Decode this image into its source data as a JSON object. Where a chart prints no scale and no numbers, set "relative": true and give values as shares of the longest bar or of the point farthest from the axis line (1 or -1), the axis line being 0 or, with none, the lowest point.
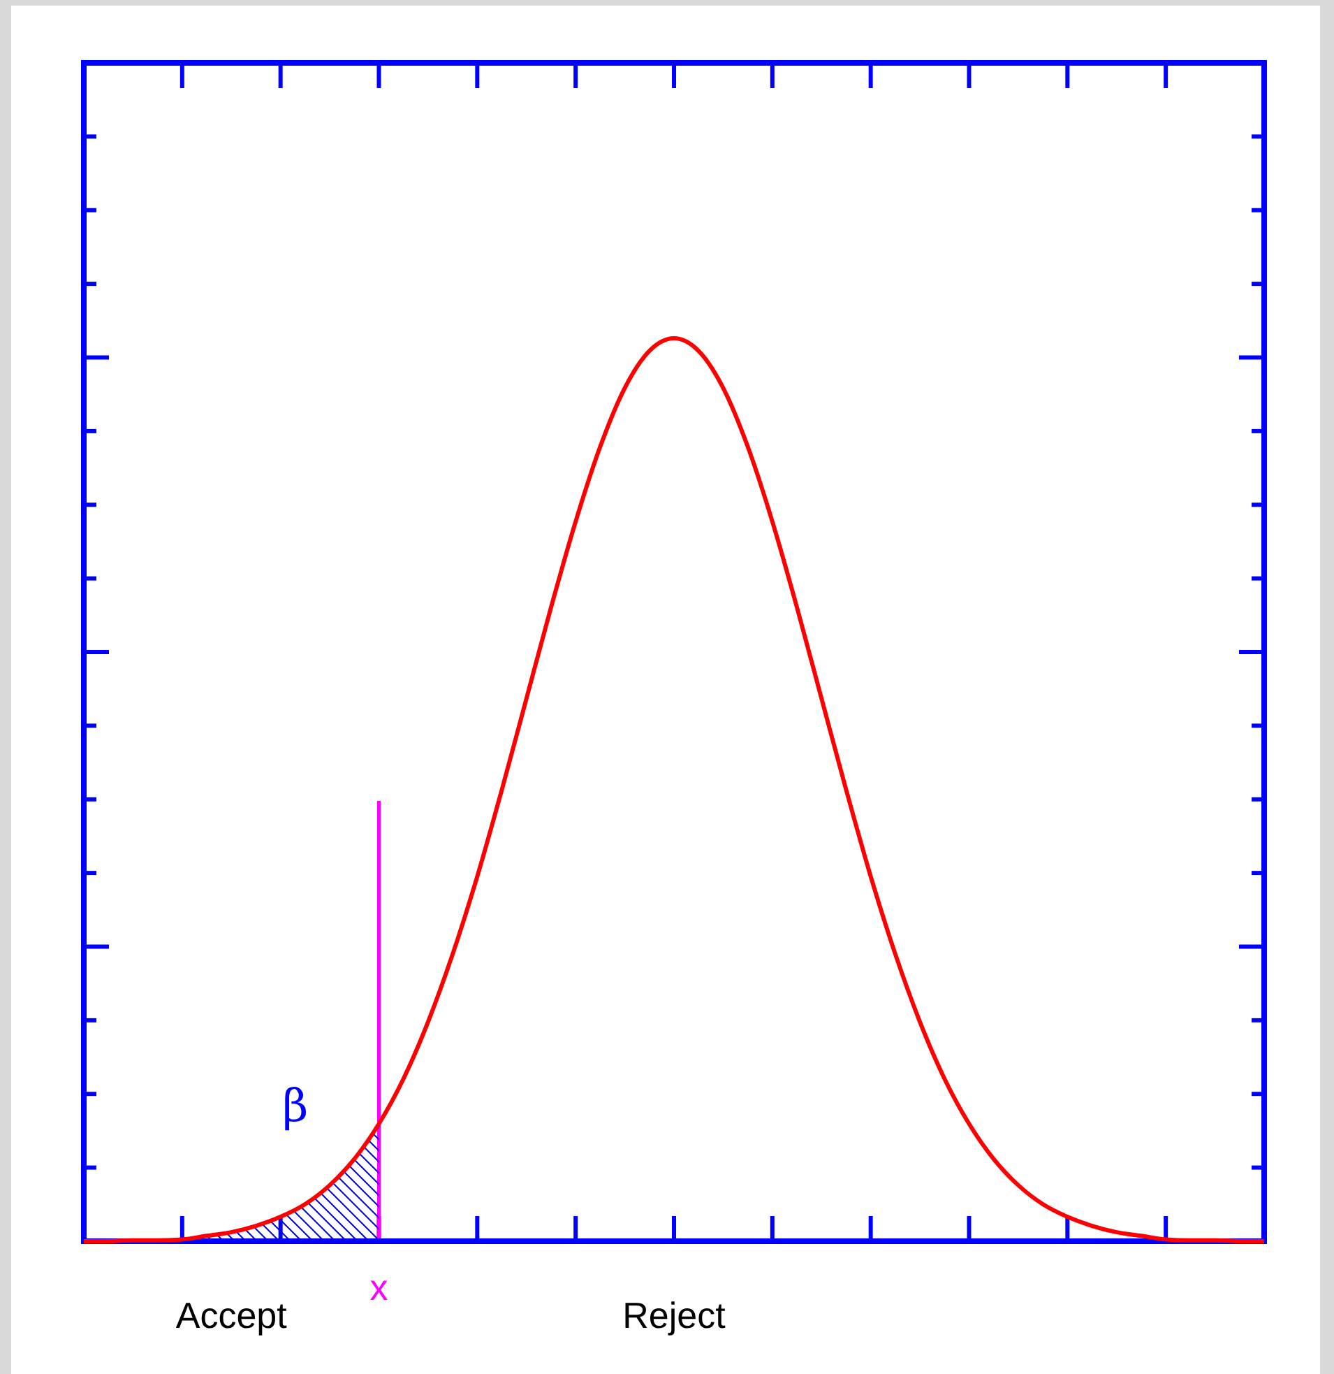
{
  "chart_data": {
    "type": "line",
    "relative": true,
    "categories": [
      null,
      null,
      null,
      null,
      null,
      null,
      null,
      null,
      null,
      null,
      null,
      null,
      null,
      null,
      null,
      null,
      null,
      null,
      null,
      null,
      null,
      null,
      null,
      null,
      null,
      null,
      null,
      null,
      null,
      null,
      null,
      null,
      null,
      null,
      null,
      null,
      null,
      null,
      null,
      null,
      null,
      null,
      null,
      null,
      null,
      null,
      null,
      null,
      null
    ],
    "series": [
      {
        "type": "area",
        "color": "#0000ff",
        "values": [
          0,
          0,
          0.001,
          0.001,
          0.002,
          0.006,
          0.01,
          0.017,
          0.027,
          0.041,
          0.062,
          0.091,
          0.13,
          null,
          null,
          null,
          null,
          null,
          null,
          null,
          null,
          null,
          null,
          null,
          null,
          null,
          null,
          null,
          null,
          null,
          null,
          null,
          null,
          null,
          null,
          null,
          null,
          null,
          null,
          null,
          null,
          null,
          null,
          null,
          null,
          null,
          null,
          null,
          null
        ]
      },
      {
        "type": "line",
        "color": "#ff0000",
        "values": [
          0,
          0,
          0.001,
          0.001,
          0.002,
          0.006,
          0.01,
          0.017,
          0.027,
          0.041,
          0.062,
          0.091,
          0.13,
          0.18,
          0.243,
          0.318,
          0.404,
          0.5,
          0.601,
          0.702,
          0.797,
          0.88,
          0.945,
          0.986,
          1,
          0.986,
          0.945,
          0.88,
          0.797,
          0.702,
          0.601,
          0.5,
          0.404,
          0.318,
          0.243,
          0.18,
          0.13,
          0.091,
          0.062,
          0.041,
          0.027,
          0.017,
          0.01,
          0.006,
          0.002,
          0.001,
          0.001,
          0,
          0
        ]
      }
    ],
    "annotations": [
      "β",
      "Accept",
      "Reject",
      "x"
    ]
  }
}
